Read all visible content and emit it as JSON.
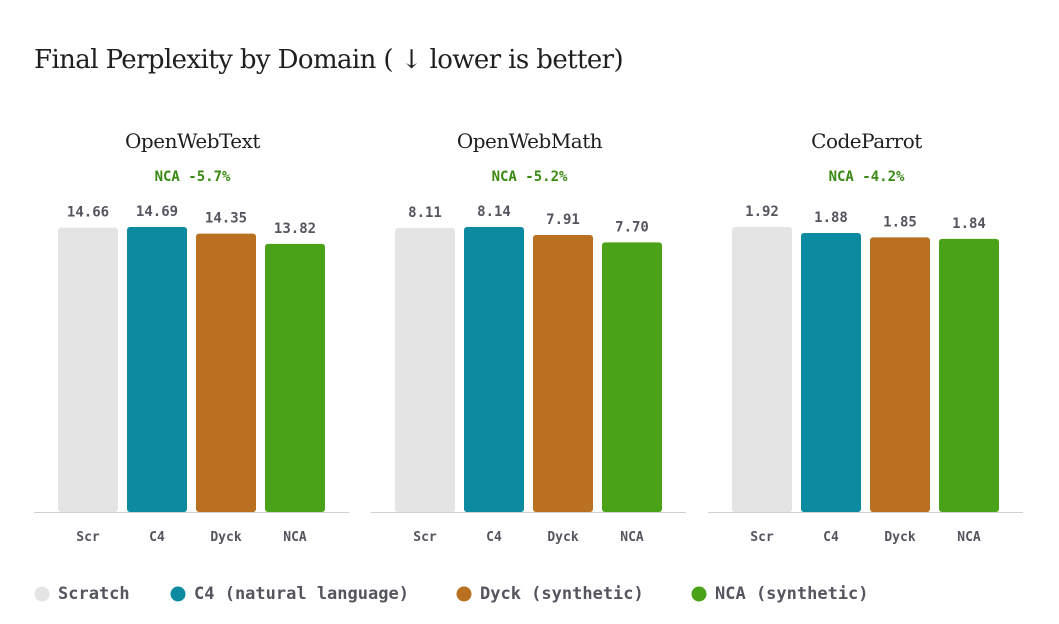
{
  "chart_data": {
    "type": "bar",
    "title": "Final Perplexity by Domain ( ↓  lower is better)",
    "categories": [
      "Scr",
      "C4",
      "Dyck",
      "NCA"
    ],
    "colors": [
      "#e4e4e4",
      "#0b8aa0",
      "#b97020",
      "#4aa219"
    ],
    "delta_color": "#3a8a12",
    "panels": [
      {
        "title": "OpenWebText",
        "delta": "NCA -5.7%",
        "values": [
          14.66,
          14.69,
          14.35,
          13.82
        ],
        "labels": [
          "14.66",
          "14.69",
          "14.35",
          "13.82"
        ]
      },
      {
        "title": "OpenWebMath",
        "delta": "NCA -5.2%",
        "values": [
          8.11,
          8.14,
          7.91,
          7.7
        ],
        "labels": [
          "8.11",
          "8.14",
          "7.91",
          "7.70"
        ]
      },
      {
        "title": "CodeParrot",
        "delta": "NCA -4.2%",
        "values": [
          1.92,
          1.88,
          1.85,
          1.84
        ],
        "labels": [
          "1.92",
          "1.88",
          "1.85",
          "1.84"
        ]
      }
    ],
    "legend": [
      "Scratch",
      "C4 (natural language)",
      "Dyck (synthetic)",
      "NCA (synthetic)"
    ],
    "legend_position": "bottom-left"
  }
}
